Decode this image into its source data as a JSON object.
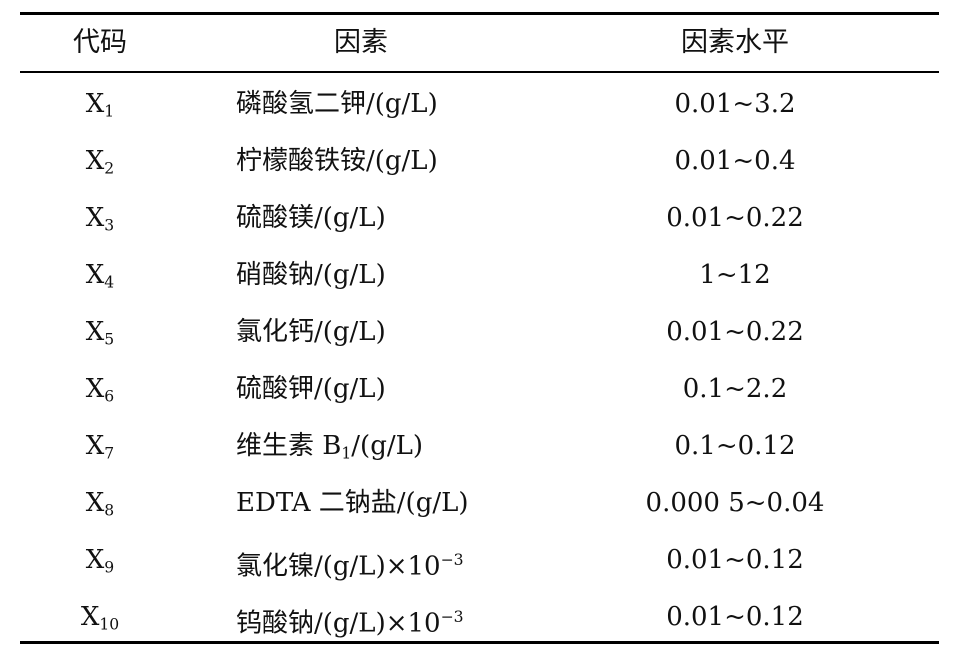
{
  "table": {
    "headers": {
      "code": "代码",
      "factor": "因素",
      "level": "因素水平"
    },
    "rows": [
      {
        "code_letter": "X",
        "code_sub": "1",
        "factor": "磷酸氢二钾/(g/L)",
        "level": "0.01~3.2"
      },
      {
        "code_letter": "X",
        "code_sub": "2",
        "factor": "柠檬酸铁铵/(g/L)",
        "level": "0.01~0.4"
      },
      {
        "code_letter": "X",
        "code_sub": "3",
        "factor": "硫酸镁/(g/L)",
        "level": "0.01~0.22"
      },
      {
        "code_letter": "X",
        "code_sub": "4",
        "factor": "硝酸钠/(g/L)",
        "level": "1~12"
      },
      {
        "code_letter": "X",
        "code_sub": "5",
        "factor": "氯化钙/(g/L)",
        "level": "0.01~0.22"
      },
      {
        "code_letter": "X",
        "code_sub": "6",
        "factor": "硫酸钾/(g/L)",
        "level": "0.1~2.2"
      },
      {
        "code_letter": "X",
        "code_sub": "7",
        "factor_pre": "维生素 B",
        "factor_sub": "1",
        "factor_post": "/(g/L)",
        "level": "0.1~0.12"
      },
      {
        "code_letter": "X",
        "code_sub": "8",
        "factor": "EDTA 二钠盐/(g/L)",
        "level": "0.000 5~0.04"
      },
      {
        "code_letter": "X",
        "code_sub": "9",
        "factor_pre": "氯化镍/(g/L)×10",
        "factor_sup": "−3",
        "level": "0.01~0.12"
      },
      {
        "code_letter": "X",
        "code_sub": "10",
        "factor_pre": "钨酸钠/(g/L)×10",
        "factor_sup": "−3",
        "level": "0.01~0.12"
      }
    ]
  }
}
